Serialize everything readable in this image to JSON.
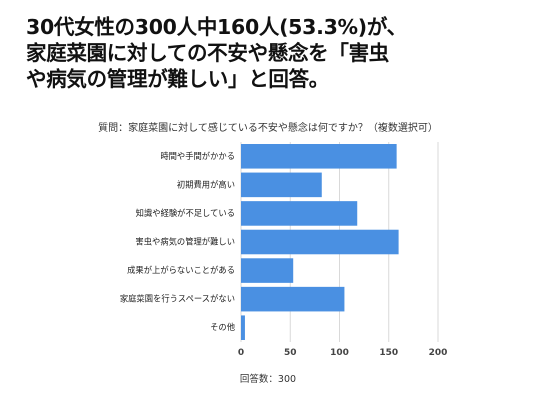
{
  "headline": {
    "lines": [
      "30代女性の300人中160人(53.3%)が、",
      "家庭菜園に対しての不安や懸念を「害虫",
      "や病気の管理が難しい」と回答。"
    ]
  },
  "chart_data": {
    "type": "bar",
    "orientation": "horizontal",
    "title": "質問：家庭菜園に対して感じている不安や懸念は何ですか？（複数選択可）",
    "categories": [
      "時間や手間がかかる",
      "初期費用が高い",
      "知識や経験が不足している",
      "害虫や病気の管理が難しい",
      "成果が上がらないことがある",
      "家庭菜園を行うスペースがない",
      "その他"
    ],
    "values": [
      158,
      82,
      118,
      160,
      53,
      105,
      4
    ],
    "xlim": [
      0,
      200
    ],
    "xticks": [
      0,
      50,
      100,
      150,
      200
    ],
    "grid": true,
    "legend": "none",
    "bar_color": "#4a90e2",
    "note": "回答数：300"
  }
}
